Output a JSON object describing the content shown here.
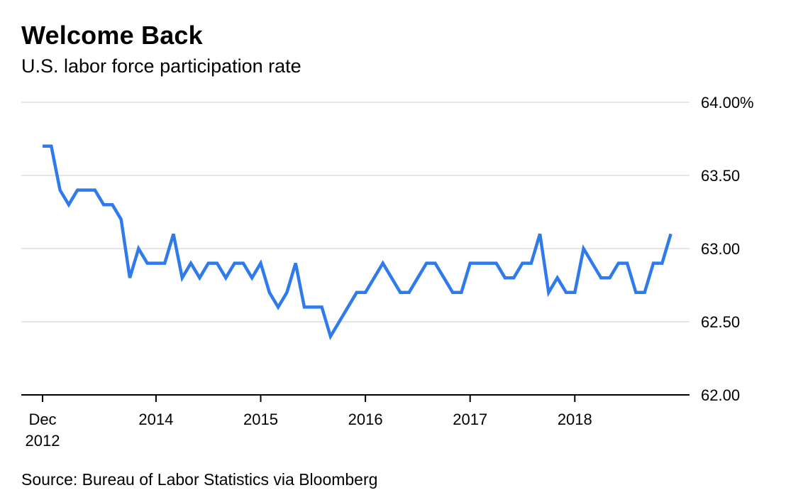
{
  "header": {
    "title": "Welcome Back",
    "subtitle": "U.S. labor force participation rate"
  },
  "footer": {
    "source": "Source: Bureau of Labor Statistics via Bloomberg"
  },
  "chart_data": {
    "type": "line",
    "title": "Welcome Back",
    "subtitle": "U.S. labor force participation rate",
    "xlabel": "",
    "ylabel": "",
    "ylim": [
      62.0,
      64.0
    ],
    "y_ticks": [
      {
        "value": 64.0,
        "label": "64.00%"
      },
      {
        "value": 63.5,
        "label": "63.50"
      },
      {
        "value": 63.0,
        "label": "63.00"
      },
      {
        "value": 62.5,
        "label": "62.50"
      },
      {
        "value": 62.0,
        "label": "62.00"
      }
    ],
    "x_ticks": [
      {
        "date": "2012-12",
        "lines": [
          "Dec",
          "2012"
        ]
      },
      {
        "date": "2014-01",
        "lines": [
          "2014"
        ]
      },
      {
        "date": "2015-01",
        "lines": [
          "2015"
        ]
      },
      {
        "date": "2016-01",
        "lines": [
          "2016"
        ]
      },
      {
        "date": "2017-01",
        "lines": [
          "2017"
        ]
      },
      {
        "date": "2018-01",
        "lines": [
          "2018"
        ]
      }
    ],
    "grid": true,
    "color": "#2f7bec",
    "series": [
      {
        "x": [
          "2012-12",
          "2013-01",
          "2013-02",
          "2013-03",
          "2013-04",
          "2013-05",
          "2013-06",
          "2013-07",
          "2013-08",
          "2013-09",
          "2013-10",
          "2013-11",
          "2013-12",
          "2014-01",
          "2014-02",
          "2014-03",
          "2014-04",
          "2014-05",
          "2014-06",
          "2014-07",
          "2014-08",
          "2014-09",
          "2014-10",
          "2014-11",
          "2014-12",
          "2015-01",
          "2015-02",
          "2015-03",
          "2015-04",
          "2015-05",
          "2015-06",
          "2015-07",
          "2015-08",
          "2015-09",
          "2015-10",
          "2015-11",
          "2015-12",
          "2016-01",
          "2016-02",
          "2016-03",
          "2016-04",
          "2016-05",
          "2016-06",
          "2016-07",
          "2016-08",
          "2016-09",
          "2016-10",
          "2016-11",
          "2016-12",
          "2017-01",
          "2017-02",
          "2017-03",
          "2017-04",
          "2017-05",
          "2017-06",
          "2017-07",
          "2017-08",
          "2017-09",
          "2017-10",
          "2017-11",
          "2017-12",
          "2018-01",
          "2018-02",
          "2018-03",
          "2018-04",
          "2018-05",
          "2018-06",
          "2018-07",
          "2018-08",
          "2018-09",
          "2018-10",
          "2018-11",
          "2018-12"
        ],
        "values": [
          63.7,
          63.7,
          63.4,
          63.3,
          63.4,
          63.4,
          63.4,
          63.3,
          63.3,
          63.2,
          62.8,
          63.0,
          62.9,
          62.9,
          62.9,
          63.1,
          62.8,
          62.9,
          62.8,
          62.9,
          62.9,
          62.8,
          62.9,
          62.9,
          62.8,
          62.9,
          62.7,
          62.6,
          62.7,
          62.9,
          62.6,
          62.6,
          62.6,
          62.4,
          62.5,
          62.6,
          62.7,
          62.7,
          62.8,
          62.9,
          62.8,
          62.7,
          62.7,
          62.8,
          62.9,
          62.9,
          62.8,
          62.7,
          62.7,
          62.9,
          62.9,
          62.9,
          62.9,
          62.8,
          62.8,
          62.9,
          62.9,
          63.1,
          62.7,
          62.8,
          62.7,
          62.7,
          63.0,
          62.9,
          62.8,
          62.8,
          62.9,
          62.9,
          62.7,
          62.7,
          62.9,
          62.9,
          63.1
        ]
      }
    ]
  }
}
